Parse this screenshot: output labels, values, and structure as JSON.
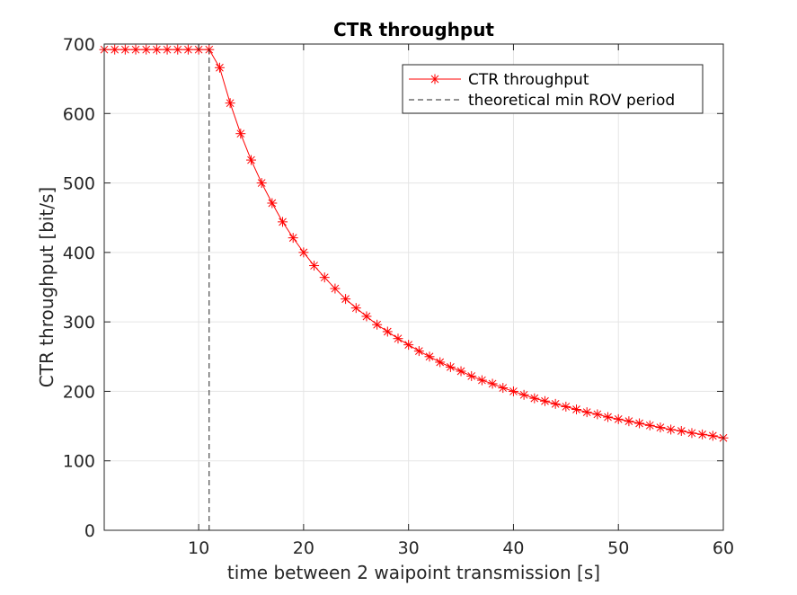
{
  "chart_data": {
    "type": "line",
    "title": "CTR throughput",
    "xlabel": "time between 2 waipoint transmission [s]",
    "ylabel": "CTR throughput [bit/s]",
    "xlim": [
      1,
      60
    ],
    "ylim": [
      0,
      700
    ],
    "xticks": [
      10,
      20,
      30,
      40,
      50,
      60
    ],
    "yticks": [
      0,
      100,
      200,
      300,
      400,
      500,
      600,
      700
    ],
    "grid": true,
    "legend_position": "top-right",
    "series": [
      {
        "name": "CTR throughput",
        "color": "#ff0000",
        "marker": "asterisk",
        "x": [
          1,
          2,
          3,
          4,
          5,
          6,
          7,
          8,
          9,
          10,
          11,
          12,
          13,
          14,
          15,
          16,
          17,
          18,
          19,
          20,
          21,
          22,
          23,
          24,
          25,
          26,
          27,
          28,
          29,
          30,
          31,
          32,
          33,
          34,
          35,
          36,
          37,
          38,
          39,
          40,
          41,
          42,
          43,
          44,
          45,
          46,
          47,
          48,
          49,
          50,
          51,
          52,
          53,
          54,
          55,
          56,
          57,
          58,
          59,
          60
        ],
        "y": [
          692,
          692,
          692,
          692,
          692,
          692,
          692,
          692,
          692,
          692,
          692,
          666,
          615,
          571,
          533,
          500,
          471,
          444,
          421,
          400,
          381,
          364,
          348,
          333,
          320,
          308,
          296,
          286,
          276,
          267,
          258,
          250,
          242,
          235,
          229,
          222,
          216,
          211,
          205,
          200,
          195,
          190,
          186,
          182,
          178,
          174,
          170,
          167,
          163,
          160,
          157,
          154,
          151,
          148,
          145,
          143,
          140,
          138,
          136,
          133
        ]
      },
      {
        "name": "theoretical min ROV period",
        "color": "#262626",
        "line_style": "dashed",
        "x": [
          11,
          11
        ],
        "y": [
          0,
          700
        ]
      }
    ]
  }
}
